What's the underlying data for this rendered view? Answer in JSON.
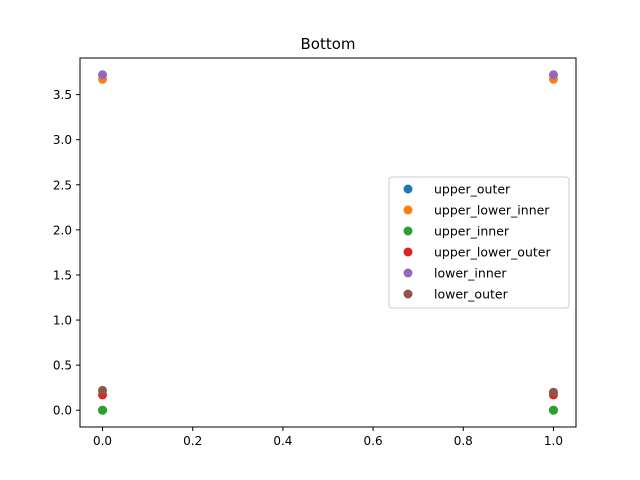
{
  "chart_data": {
    "type": "scatter",
    "title": "Bottom",
    "xlabel": "",
    "ylabel": "",
    "xlim": [
      -0.05,
      1.05
    ],
    "ylim": [
      -0.186,
      3.906
    ],
    "xticks": [
      "0.0",
      "0.2",
      "0.4",
      "0.6",
      "0.8",
      "1.0"
    ],
    "yticks": [
      "0.0",
      "0.5",
      "1.0",
      "1.5",
      "2.0",
      "2.5",
      "3.0",
      "3.5"
    ],
    "grid": false,
    "legend_position": "center-right",
    "series": [
      {
        "name": "upper_outer",
        "color": "#1f77b4",
        "points": [
          {
            "x": 0.0,
            "y": 0.0
          },
          {
            "x": 1.0,
            "y": 0.0
          }
        ]
      },
      {
        "name": "upper_lower_inner",
        "color": "#ff7f0e",
        "points": [
          {
            "x": 0.0,
            "y": 3.67
          },
          {
            "x": 1.0,
            "y": 3.67
          }
        ]
      },
      {
        "name": "upper_inner",
        "color": "#2ca02c",
        "points": [
          {
            "x": 0.0,
            "y": 0.0
          },
          {
            "x": 1.0,
            "y": 0.0
          }
        ]
      },
      {
        "name": "upper_lower_outer",
        "color": "#d62728",
        "points": [
          {
            "x": 0.0,
            "y": 0.17
          },
          {
            "x": 1.0,
            "y": 0.17
          }
        ]
      },
      {
        "name": "lower_inner",
        "color": "#9467bd",
        "points": [
          {
            "x": 0.0,
            "y": 3.72
          },
          {
            "x": 1.0,
            "y": 3.72
          }
        ]
      },
      {
        "name": "lower_outer",
        "color": "#8c564b",
        "points": [
          {
            "x": 0.0,
            "y": 0.22
          },
          {
            "x": 1.0,
            "y": 0.2
          }
        ]
      }
    ]
  }
}
